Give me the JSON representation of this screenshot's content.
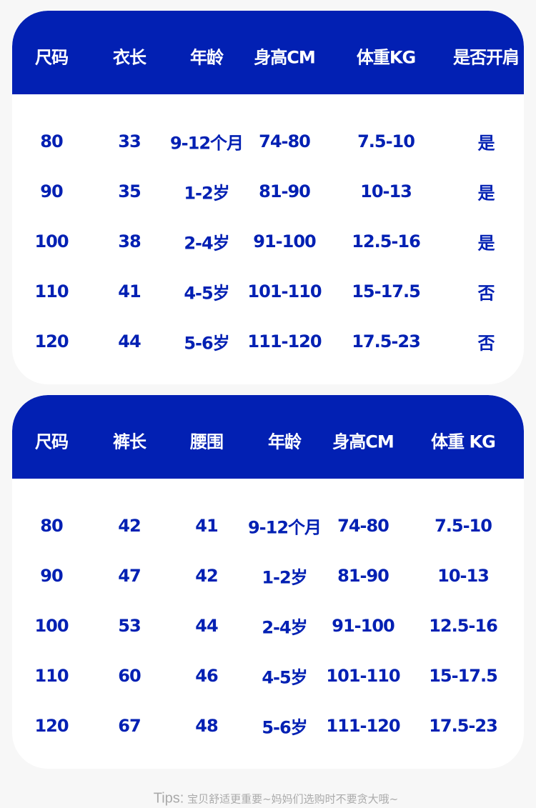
{
  "colors": {
    "header": "#0220b3",
    "text": "#0220b3",
    "background": "#f7f7f7"
  },
  "top_table": {
    "headers": [
      "尺码",
      "衣长",
      "年龄",
      "身高CM",
      "体重KG",
      "是否开肩"
    ],
    "rows": [
      [
        "80",
        "33",
        "9-12个月",
        "74-80",
        "7.5-10",
        "是"
      ],
      [
        "90",
        "35",
        "1-2岁",
        "81-90",
        "10-13",
        "是"
      ],
      [
        "100",
        "38",
        "2-4岁",
        "91-100",
        "12.5-16",
        "是"
      ],
      [
        "110",
        "41",
        "4-5岁",
        "101-110",
        "15-17.5",
        "否"
      ],
      [
        "120",
        "44",
        "5-6岁",
        "111-120",
        "17.5-23",
        "否"
      ]
    ]
  },
  "bottom_table": {
    "headers": [
      "尺码",
      "裤长",
      "腰围",
      "年龄",
      "身高CM",
      "体重 KG"
    ],
    "rows": [
      [
        "80",
        "42",
        "41",
        "9-12个月",
        "74-80",
        "7.5-10"
      ],
      [
        "90",
        "47",
        "42",
        "1-2岁",
        "81-90",
        "10-13"
      ],
      [
        "100",
        "53",
        "44",
        "2-4岁",
        "91-100",
        "12.5-16"
      ],
      [
        "110",
        "60",
        "46",
        "4-5岁",
        "101-110",
        "15-17.5"
      ],
      [
        "120",
        "67",
        "48",
        "5-6岁",
        "111-120",
        "17.5-23"
      ]
    ]
  },
  "tips": {
    "label": "Tips:",
    "text": " 宝贝舒适更重要~妈妈们选购时不要贪大哦~"
  }
}
